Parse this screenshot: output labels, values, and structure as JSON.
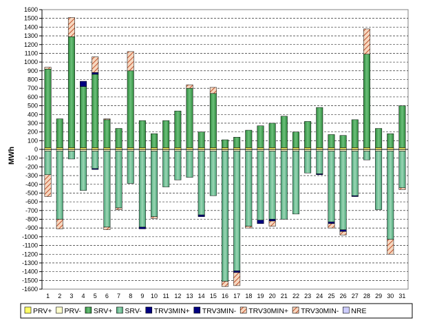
{
  "chart_data": {
    "type": "bar",
    "stacked": true,
    "ylabel": "MWh",
    "ylim": [
      -1600,
      1600
    ],
    "ytick_step": 100,
    "grid": true,
    "legend_position": "bottom",
    "categories": [
      "1",
      "2",
      "3",
      "4",
      "5",
      "6",
      "7",
      "8",
      "9",
      "10",
      "11",
      "12",
      "13",
      "14",
      "15",
      "16",
      "17",
      "18",
      "19",
      "20",
      "21",
      "22",
      "23",
      "24",
      "25",
      "26",
      "27",
      "28",
      "29",
      "30",
      "31"
    ],
    "series": [
      {
        "name": "PRV+",
        "color": "#ffff66",
        "pattern": "solid",
        "values": [
          20,
          20,
          20,
          20,
          20,
          20,
          20,
          20,
          20,
          20,
          20,
          20,
          20,
          20,
          20,
          20,
          20,
          20,
          20,
          20,
          20,
          20,
          20,
          20,
          20,
          20,
          20,
          20,
          20,
          20,
          20
        ]
      },
      {
        "name": "PRV-",
        "color": "#ffffcc",
        "pattern": "solid",
        "values": [
          -20,
          -20,
          -20,
          -20,
          -20,
          -20,
          -20,
          -20,
          -20,
          -20,
          -20,
          -20,
          -20,
          -20,
          -20,
          -20,
          -20,
          -20,
          -20,
          -20,
          -20,
          -20,
          -20,
          -20,
          -20,
          -20,
          -20,
          -20,
          -20,
          -20,
          -20
        ]
      },
      {
        "name": "SRV+",
        "color": "#3cab4a",
        "pattern": "gradient",
        "values": [
          900,
          330,
          1270,
          700,
          840,
          320,
          220,
          880,
          310,
          160,
          310,
          420,
          680,
          180,
          620,
          90,
          120,
          200,
          250,
          280,
          360,
          180,
          300,
          460,
          150,
          140,
          320,
          1070,
          220,
          160,
          480
        ]
      },
      {
        "name": "SRV-",
        "color": "#6fc293",
        "pattern": "gradient",
        "values": [
          -270,
          -780,
          -90,
          -450,
          -200,
          -870,
          -650,
          -370,
          -870,
          -750,
          -410,
          -330,
          -300,
          -730,
          -510,
          -1490,
          -1370,
          -860,
          -790,
          -780,
          -780,
          -720,
          -250,
          -260,
          -810,
          -900,
          -510,
          -100,
          -670,
          -1010,
          -420
        ]
      },
      {
        "name": "TRV3MIN+",
        "color": "#000080",
        "pattern": "solid",
        "values": [
          0,
          0,
          0,
          60,
          20,
          0,
          0,
          0,
          0,
          0,
          0,
          0,
          0,
          0,
          0,
          0,
          0,
          0,
          0,
          0,
          0,
          0,
          0,
          0,
          0,
          0,
          0,
          0,
          0,
          0,
          0
        ]
      },
      {
        "name": "TRV3MIN-",
        "color": "#000080",
        "pattern": "solid",
        "values": [
          0,
          0,
          0,
          0,
          -10,
          0,
          0,
          0,
          -20,
          0,
          0,
          0,
          0,
          -20,
          0,
          0,
          -20,
          0,
          -40,
          -20,
          0,
          0,
          0,
          -10,
          -20,
          -20,
          -10,
          0,
          0,
          0,
          0
        ]
      },
      {
        "name": "TRV30MIN+",
        "color": "#f4b183",
        "pattern": "hatch",
        "values": [
          20,
          0,
          220,
          0,
          180,
          10,
          0,
          220,
          0,
          0,
          0,
          0,
          40,
          0,
          70,
          0,
          0,
          0,
          0,
          0,
          0,
          0,
          0,
          0,
          0,
          0,
          0,
          290,
          0,
          0,
          0
        ]
      },
      {
        "name": "TRV30MIN-",
        "color": "#f4b183",
        "pattern": "hatch",
        "values": [
          -250,
          -110,
          0,
          0,
          0,
          -30,
          -20,
          0,
          0,
          -20,
          0,
          0,
          0,
          0,
          0,
          -60,
          -150,
          -20,
          0,
          -60,
          0,
          0,
          0,
          0,
          -50,
          -40,
          0,
          0,
          0,
          -170,
          -20
        ]
      },
      {
        "name": "NRE",
        "color": "#ccccff",
        "pattern": "solid",
        "values": [
          0,
          0,
          0,
          0,
          0,
          0,
          0,
          0,
          0,
          0,
          0,
          0,
          0,
          0,
          0,
          0,
          0,
          0,
          0,
          0,
          0,
          0,
          0,
          0,
          0,
          0,
          0,
          0,
          0,
          0,
          0
        ]
      }
    ]
  }
}
